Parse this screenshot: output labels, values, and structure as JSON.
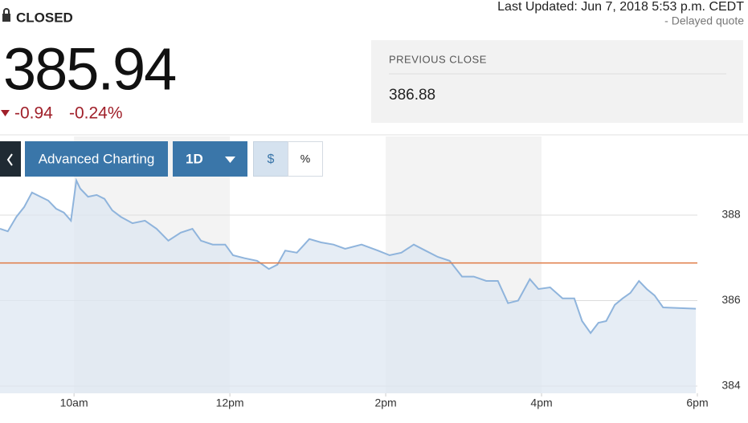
{
  "header": {
    "status": "CLOSED",
    "price": "385.94",
    "change": "-0.94",
    "change_pct": "-0.24%",
    "last_updated": "Last Updated: Jun 7, 2018 5:53 p.m. CEDT",
    "delayed": "-  Delayed quote"
  },
  "previous_close": {
    "label": "PREVIOUS CLOSE",
    "value": 386.88
  },
  "toolbar": {
    "advanced": "Advanced Charting",
    "range": "1D",
    "dollar": "$",
    "percent": "%"
  },
  "chart_data": {
    "type": "area",
    "color": "#8fb4dc",
    "fill": "#dde7f1",
    "reference_color": "#e07b45",
    "grid": true,
    "x": [
      9.05,
      9.15,
      9.26,
      9.36,
      9.46,
      9.57,
      9.67,
      9.77,
      9.87,
      9.96,
      10.03,
      10.08,
      10.18,
      10.29,
      10.39,
      10.49,
      10.6,
      10.75,
      10.91,
      11.06,
      11.21,
      11.37,
      11.52,
      11.63,
      11.78,
      11.94,
      12.04,
      12.19,
      12.35,
      12.5,
      12.61,
      12.71,
      12.86,
      13.02,
      13.17,
      13.33,
      13.48,
      13.69,
      13.9,
      14.05,
      14.2,
      14.36,
      14.51,
      14.67,
      14.82,
      14.98,
      15.13,
      15.29,
      15.44,
      15.57,
      15.7,
      15.85,
      15.96,
      16.11,
      16.27,
      16.42,
      16.52,
      16.63,
      16.73,
      16.83,
      16.94,
      17.04,
      17.14,
      17.25,
      17.35,
      17.45,
      17.56,
      17.98
    ],
    "values": [
      387.68,
      387.62,
      387.96,
      388.19,
      388.53,
      388.43,
      388.34,
      388.15,
      388.06,
      387.87,
      388.81,
      388.62,
      388.43,
      388.47,
      388.38,
      388.11,
      387.96,
      387.81,
      387.87,
      387.68,
      387.4,
      387.59,
      387.68,
      387.4,
      387.31,
      387.31,
      387.06,
      386.99,
      386.93,
      386.74,
      386.84,
      387.17,
      387.12,
      387.44,
      387.36,
      387.31,
      387.21,
      387.31,
      387.17,
      387.06,
      387.12,
      387.31,
      387.17,
      387.02,
      386.93,
      386.56,
      386.56,
      386.46,
      386.46,
      385.94,
      386.0,
      386.5,
      386.27,
      386.31,
      386.05,
      386.05,
      385.52,
      385.24,
      385.48,
      385.52,
      385.9,
      386.05,
      386.18,
      386.46,
      386.27,
      386.12,
      385.84,
      385.81
    ],
    "xlim": [
      9.05,
      18
    ],
    "xticks": [
      {
        "value": 10,
        "label": "10am"
      },
      {
        "value": 12,
        "label": "12pm"
      },
      {
        "value": 14,
        "label": "2pm"
      },
      {
        "value": 16,
        "label": "4pm"
      },
      {
        "value": 18,
        "label": "6pm"
      }
    ],
    "ylim": [
      383.83,
      389.84
    ],
    "yticks": [
      384,
      386,
      388
    ]
  }
}
